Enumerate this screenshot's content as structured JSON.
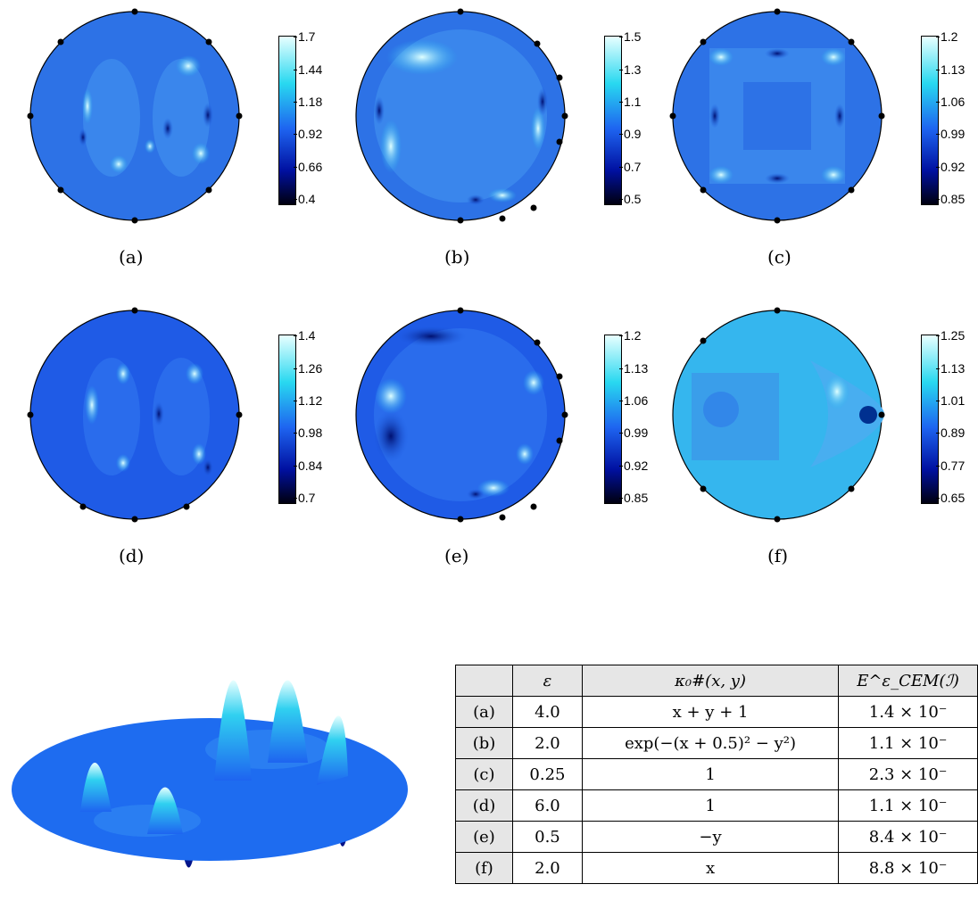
{
  "panels": [
    {
      "label": "(a)",
      "ticks": [
        "1.7",
        "1.44",
        "1.18",
        "0.92",
        "0.66",
        "0.4"
      ],
      "bg": "#2d72e6"
    },
    {
      "label": "(b)",
      "ticks": [
        "1.5",
        "1.3",
        "1.1",
        "0.9",
        "0.7",
        "0.5"
      ],
      "bg": "#2d72e6"
    },
    {
      "label": "(c)",
      "ticks": [
        "1.2",
        "1.13",
        "1.06",
        "0.99",
        "0.92",
        "0.85"
      ],
      "bg": "#2d72e6"
    },
    {
      "label": "(d)",
      "ticks": [
        "1.4",
        "1.26",
        "1.12",
        "0.98",
        "0.84",
        "0.7"
      ],
      "bg": "#1f5be6"
    },
    {
      "label": "(e)",
      "ticks": [
        "1.2",
        "1.13",
        "1.06",
        "0.99",
        "0.92",
        "0.85"
      ],
      "bg": "#1f5be6"
    },
    {
      "label": "(f)",
      "ticks": [
        "1.25",
        "1.13",
        "1.01",
        "0.89",
        "0.77",
        "0.65"
      ],
      "bg": "#35b6ee"
    }
  ],
  "table": {
    "headers": [
      "ε",
      "κ₀#(x, y)",
      "E^ε_CEM(ℐ)"
    ],
    "rows": [
      {
        "label": "(a)",
        "eps": "4.0",
        "kappa": "x + y + 1",
        "err": "1.4 × 10⁻"
      },
      {
        "label": "(b)",
        "eps": "2.0",
        "kappa": "exp(−(x + 0.5)² − y²)",
        "err": "1.1 × 10⁻"
      },
      {
        "label": "(c)",
        "eps": "0.25",
        "kappa": "1",
        "err": "2.3 × 10⁻"
      },
      {
        "label": "(d)",
        "eps": "6.0",
        "kappa": "1",
        "err": "1.1 × 10⁻"
      },
      {
        "label": "(e)",
        "eps": "0.5",
        "kappa": "−y",
        "err": "8.4 × 10⁻"
      },
      {
        "label": "(f)",
        "eps": "2.0",
        "kappa": "x",
        "err": "8.8 × 10⁻"
      }
    ]
  },
  "colors": {
    "colormap_top": "#e8ffff",
    "colormap_mid_high": "#28d8f0",
    "colormap_mid": "#1e64f0",
    "colormap_low": "#0010a0",
    "colormap_bottom": "#000010"
  }
}
